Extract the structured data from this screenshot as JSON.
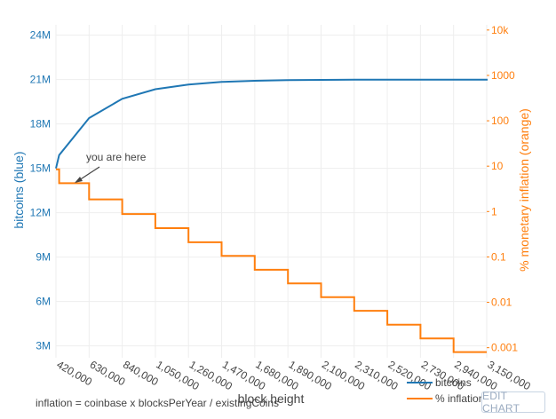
{
  "chart_data": {
    "type": "line",
    "xlabel": "block height",
    "ylabel_left": "bitcoins (blue)",
    "ylabel_right": "% monetary inflation (orange)",
    "x_ticks": [
      "420,000",
      "630,000",
      "840,000",
      "1,050,000",
      "1,260,000",
      "1,470,000",
      "1,680,000",
      "1,890,000",
      "2,100,000",
      "2,310,000",
      "2,520,000",
      "2,730,000",
      "2,940,000",
      "3,150,000"
    ],
    "x_tick_values": [
      420000,
      630000,
      840000,
      1050000,
      1260000,
      1470000,
      1680000,
      1890000,
      2100000,
      2310000,
      2520000,
      2730000,
      2940000,
      3150000
    ],
    "xlim": [
      420000,
      3150000
    ],
    "y_left_ticks": [
      "3M",
      "6M",
      "9M",
      "12M",
      "15M",
      "18M",
      "21M",
      "24M"
    ],
    "y_left_tick_values": [
      3000000,
      6000000,
      9000000,
      12000000,
      15000000,
      18000000,
      21000000,
      24000000
    ],
    "y_left_lim": [
      2200000,
      24700000
    ],
    "y_right_ticks": [
      "0.001",
      "0.01",
      "0.1",
      "1",
      "10",
      "100",
      "1000",
      "10k"
    ],
    "y_right_tick_values": [
      0.001,
      0.01,
      0.1,
      1,
      10,
      100,
      1000,
      10000
    ],
    "y_right_lim": [
      0.0006,
      13000
    ],
    "y_right_scale": "log",
    "grid": true,
    "legend_position": "bottom-right",
    "series": [
      {
        "name": "bitcoins",
        "axis": "left",
        "color": "#1f77b4",
        "x": [
          420000,
          440000,
          630000,
          840000,
          1050000,
          1260000,
          1470000,
          1680000,
          1890000,
          2100000,
          2310000,
          2520000,
          2730000,
          2940000,
          3150000,
          3200000
        ],
        "y": [
          15000000,
          15900000,
          18400000,
          19700000,
          20350000,
          20670000,
          20840000,
          20920000,
          20960000,
          20980000,
          20990000,
          20995000,
          20997000,
          20998000,
          20999000,
          20999500
        ]
      },
      {
        "name": "% inflation",
        "axis": "right",
        "color": "#ff7f0e",
        "step": true,
        "x": [
          420000,
          440000,
          630000,
          840000,
          1050000,
          1260000,
          1470000,
          1680000,
          1890000,
          2100000,
          2310000,
          2520000,
          2730000,
          2940000,
          3150000
        ],
        "y": [
          8.5,
          4.2,
          1.85,
          0.88,
          0.43,
          0.21,
          0.105,
          0.052,
          0.026,
          0.013,
          0.0065,
          0.0032,
          0.0016,
          0.0008,
          0.0008
        ]
      }
    ],
    "annotations": [
      {
        "text": "you are here",
        "x": 550000,
        "y_right": 4.2
      }
    ],
    "footnote": "inflation = coinbase x blocksPerYear / existingCoins"
  },
  "ui": {
    "edit_chart_label": "EDIT CHART"
  }
}
